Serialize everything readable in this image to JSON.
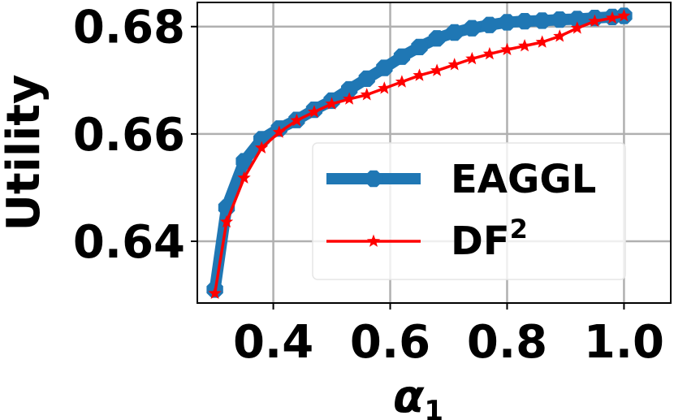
{
  "chart_data": {
    "type": "line",
    "ylabel": "Utility",
    "xlabel_main": "α",
    "xlabel_sub": "1",
    "xlim": [
      0.27,
      1.08
    ],
    "ylim": [
      0.6285,
      0.6845
    ],
    "grid": true,
    "legend_placement": "center-right",
    "xticks": [
      0.4,
      0.6,
      0.8,
      1.0
    ],
    "xtick_labels": [
      "0.4",
      "0.6",
      "0.8",
      "1.0"
    ],
    "yticks": [
      0.64,
      0.66,
      0.68
    ],
    "ytick_labels": [
      "0.64",
      "0.66",
      "0.68"
    ],
    "x": [
      0.3,
      0.32,
      0.35,
      0.38,
      0.41,
      0.44,
      0.47,
      0.5,
      0.53,
      0.56,
      0.59,
      0.62,
      0.65,
      0.68,
      0.71,
      0.74,
      0.77,
      0.8,
      0.83,
      0.86,
      0.89,
      0.92,
      0.95,
      0.98,
      1.0
    ],
    "series": [
      {
        "name": "EAGGL",
        "color": "#1f77b4",
        "values": [
          0.631,
          0.6463,
          0.6549,
          0.659,
          0.661,
          0.6626,
          0.6645,
          0.6662,
          0.6683,
          0.6703,
          0.6723,
          0.6744,
          0.6762,
          0.6778,
          0.6789,
          0.6797,
          0.6803,
          0.6808,
          0.681,
          0.6811,
          0.6813,
          0.6814,
          0.6816,
          0.6818,
          0.682
        ]
      },
      {
        "name": "DF",
        "name_sup": "2",
        "color": "#ff0000",
        "values": [
          0.6303,
          0.6436,
          0.6518,
          0.6574,
          0.6603,
          0.6625,
          0.6641,
          0.6656,
          0.6665,
          0.6673,
          0.6685,
          0.6697,
          0.6709,
          0.6718,
          0.6729,
          0.674,
          0.6749,
          0.6757,
          0.6764,
          0.6771,
          0.6782,
          0.6797,
          0.681,
          0.6816,
          0.682
        ]
      }
    ]
  }
}
